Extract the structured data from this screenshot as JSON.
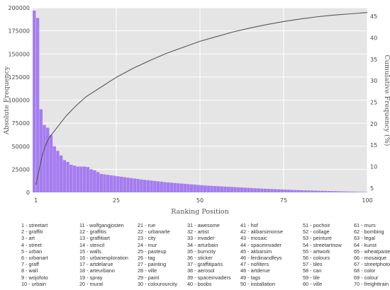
{
  "chart_data": {
    "type": "bar",
    "xlabel": "Ranking Position",
    "ylabel": "Absolute Frequency",
    "ylabel_right": "Cumulative Frequency (%)",
    "xlim": [
      0,
      100
    ],
    "ylim": [
      0,
      200000
    ],
    "ylim_right": [
      4,
      47
    ],
    "x_ticks": [
      1,
      25,
      50,
      75,
      100
    ],
    "y_ticks": [
      0,
      25000,
      50000,
      75000,
      100000,
      125000,
      150000,
      175000,
      200000
    ],
    "y_ticks_right": [
      5,
      10,
      15,
      20,
      25,
      30,
      35,
      40,
      45
    ],
    "grid": true,
    "bar_color": "#a57cf0",
    "line_color": "#555555",
    "background_color": "#e5e5e5",
    "bar_values": [
      197000,
      189000,
      90000,
      73000,
      70000,
      62000,
      50000,
      45000,
      40000,
      35000,
      33000,
      30000,
      29000,
      28000,
      28000,
      28000,
      27500,
      25000,
      24000,
      22000,
      20000,
      19500,
      19000,
      18500,
      18000,
      17500,
      17000,
      16500,
      16000,
      15500,
      15000,
      14500,
      14000,
      13600,
      13200,
      12800,
      12400,
      12000,
      11600,
      11200,
      10800,
      10500,
      10200,
      9900,
      9600,
      9300,
      9000,
      8700,
      8400,
      8100,
      7800,
      7500,
      7300,
      7100,
      6900,
      6700,
      6500,
      6300,
      6100,
      5900,
      5700,
      5500,
      5300,
      5100,
      4900,
      4700,
      4500,
      4300,
      4100,
      3950,
      3800,
      3650,
      3500,
      3350,
      3200,
      3050,
      2900,
      2750,
      2600,
      2450,
      2300,
      2200,
      2100,
      2000,
      1900,
      1800,
      1700,
      1600,
      1500,
      1400,
      1300,
      1200,
      1100,
      1000,
      900,
      800,
      700,
      600,
      500,
      400
    ],
    "cumulative": [
      [
        1,
        5.8
      ],
      [
        2,
        9.5
      ],
      [
        3,
        13.0
      ],
      [
        4,
        15.2
      ],
      [
        5,
        16.8
      ],
      [
        7,
        18.8
      ],
      [
        10,
        21.8
      ],
      [
        13,
        24.2
      ],
      [
        16,
        26.3
      ],
      [
        20,
        28.3
      ],
      [
        25,
        30.8
      ],
      [
        30,
        32.9
      ],
      [
        35,
        34.7
      ],
      [
        40,
        36.4
      ],
      [
        45,
        37.8
      ],
      [
        50,
        39.2
      ],
      [
        55,
        40.3
      ],
      [
        60,
        41.4
      ],
      [
        65,
        42.3
      ],
      [
        70,
        43.1
      ],
      [
        75,
        43.8
      ],
      [
        80,
        44.4
      ],
      [
        85,
        44.9
      ],
      [
        90,
        45.3
      ],
      [
        95,
        45.6
      ],
      [
        100,
        45.9
      ]
    ]
  },
  "legend": [
    [
      "1 - streetart",
      "2 - graffiti",
      "3 - art",
      "4 - street",
      "5 - urban",
      "6 - urbanart",
      "7 - graff",
      "8 - wall",
      "9 - wojofoto",
      "10 - urbain"
    ],
    [
      "11 - wolfgangjosten",
      "12 - graffitis",
      "13 - graffitiart",
      "14 - stencil",
      "15 - walls",
      "16 - urbanexploration",
      "17 - artdelarue",
      "18 - arteurbano",
      "19 - spray",
      "20 - mural"
    ],
    [
      "21 - rue",
      "22 - urbanarte",
      "23 - city",
      "24 - mur",
      "25 - pasteup",
      "26 - tag",
      "27 - painting",
      "28 - ville",
      "29 - paint",
      "30 - colourourcity"
    ],
    [
      "31 - awesome",
      "32 - artist",
      "33 - invader",
      "34 - arturbain",
      "35 - burncity",
      "36 - sticker",
      "37 - graffitiparis",
      "38 - aerosol",
      "39 - spaceinvaders",
      "40 - boobs"
    ],
    [
      "41 - hof",
      "42 - akbarsimonse",
      "43 - mosaic",
      "44 - spaceinvader",
      "45 - akbarsim",
      "46 - ferdinandfeys",
      "47 - nofilters",
      "48 - artderue",
      "49 - tags",
      "50 - installation"
    ],
    [
      "51 - pochoir",
      "52 - collage",
      "53 - peinture",
      "54 - streetartnow",
      "55 - artwork",
      "56 - colours",
      "57 - tiles",
      "58 - can",
      "59 - tile",
      "60 - ville"
    ],
    [
      "61 - murs",
      "62 - bombing",
      "63 - legal",
      "64 - kunst",
      "65 - wheatpaste",
      "66 - mosaique",
      "67 - streetphotography",
      "68 - color",
      "69 - colour",
      "70 - freighttrain"
    ]
  ]
}
